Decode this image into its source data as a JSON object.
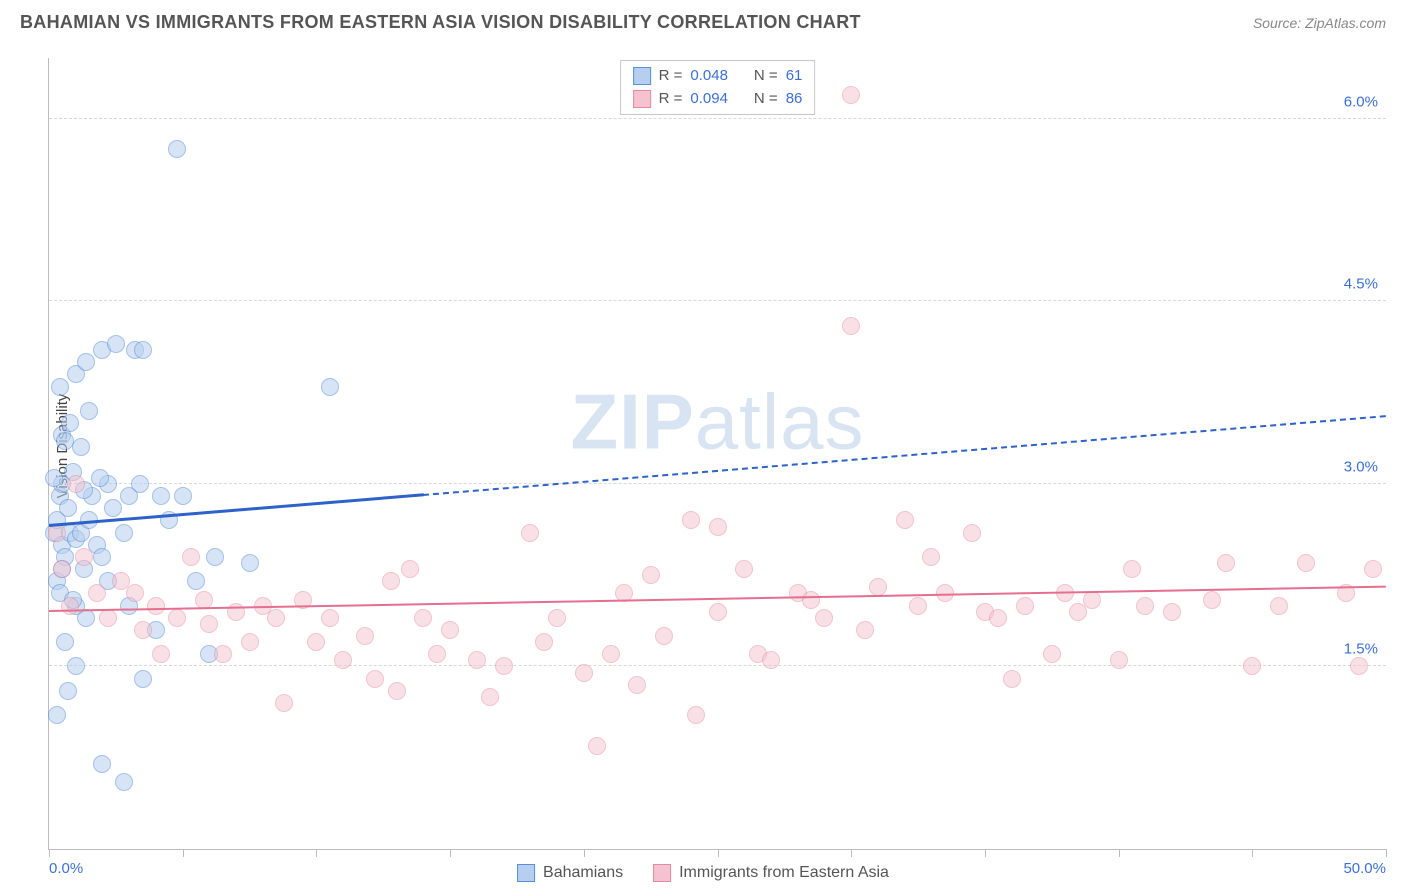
{
  "header": {
    "title": "BAHAMIAN VS IMMIGRANTS FROM EASTERN ASIA VISION DISABILITY CORRELATION CHART",
    "source_prefix": "Source: ",
    "source_name": "ZipAtlas.com"
  },
  "ylabel": "Vision Disability",
  "watermark": {
    "bold": "ZIP",
    "rest": "atlas"
  },
  "chart": {
    "type": "scatter",
    "xlim": [
      0,
      50
    ],
    "ylim": [
      0,
      6.5
    ],
    "x_axis_labels": {
      "left": "0.0%",
      "right": "50.0%"
    },
    "y_ticks": [
      {
        "v": 1.5,
        "label": "1.5%"
      },
      {
        "v": 3.0,
        "label": "3.0%"
      },
      {
        "v": 4.5,
        "label": "4.5%"
      },
      {
        "v": 6.0,
        "label": "6.0%"
      }
    ],
    "x_tick_positions": [
      0,
      5,
      10,
      15,
      20,
      25,
      30,
      35,
      40,
      45,
      50
    ],
    "grid_color": "#d8d8d8",
    "axis_color": "#bdbdbd",
    "background_color": "#ffffff",
    "tick_label_color": "#3b6fd6",
    "marker_radius": 9,
    "marker_border_width": 1.2,
    "series": [
      {
        "name": "Bahamians",
        "fill": "#b6cff0",
        "fill_opacity": 0.55,
        "stroke": "#5a8fd6",
        "trend": {
          "color": "#2c62c9",
          "width": 3,
          "solid_end_x": 14,
          "y_start": 2.65,
          "y_end": 3.55
        },
        "stats": {
          "R": "0.048",
          "N": "61"
        },
        "points": [
          [
            0.2,
            2.6
          ],
          [
            0.3,
            2.7
          ],
          [
            0.5,
            2.5
          ],
          [
            0.4,
            2.9
          ],
          [
            0.6,
            2.4
          ],
          [
            0.8,
            2.6
          ],
          [
            0.3,
            2.2
          ],
          [
            0.7,
            2.8
          ],
          [
            1.0,
            2.55
          ],
          [
            1.2,
            2.6
          ],
          [
            0.5,
            3.0
          ],
          [
            0.9,
            3.1
          ],
          [
            0.4,
            2.1
          ],
          [
            1.3,
            2.3
          ],
          [
            1.5,
            2.7
          ],
          [
            1.8,
            2.5
          ],
          [
            0.6,
            1.7
          ],
          [
            1.0,
            1.5
          ],
          [
            1.4,
            1.9
          ],
          [
            1.6,
            2.9
          ],
          [
            2.0,
            2.4
          ],
          [
            2.4,
            2.8
          ],
          [
            2.2,
            3.0
          ],
          [
            2.8,
            2.6
          ],
          [
            3.0,
            2.9
          ],
          [
            3.4,
            3.0
          ],
          [
            4.2,
            2.9
          ],
          [
            4.5,
            2.7
          ],
          [
            5.0,
            2.9
          ],
          [
            5.5,
            2.2
          ],
          [
            6.0,
            1.6
          ],
          [
            6.2,
            2.4
          ],
          [
            0.5,
            3.4
          ],
          [
            0.8,
            3.5
          ],
          [
            1.2,
            3.3
          ],
          [
            2.0,
            4.1
          ],
          [
            2.5,
            4.15
          ],
          [
            3.2,
            4.1
          ],
          [
            3.5,
            4.1
          ],
          [
            0.4,
            3.8
          ],
          [
            1.0,
            3.9
          ],
          [
            1.5,
            3.6
          ],
          [
            1.3,
            2.95
          ],
          [
            2.2,
            2.2
          ],
          [
            4.0,
            1.8
          ],
          [
            3.5,
            1.4
          ],
          [
            2.8,
            0.55
          ],
          [
            2.0,
            0.7
          ],
          [
            10.5,
            3.8
          ],
          [
            4.8,
            5.75
          ],
          [
            0.3,
            1.1
          ],
          [
            0.7,
            1.3
          ],
          [
            1.0,
            2.0
          ],
          [
            0.5,
            2.3
          ],
          [
            1.9,
            3.05
          ],
          [
            0.2,
            3.05
          ],
          [
            0.6,
            3.35
          ],
          [
            1.4,
            4.0
          ],
          [
            0.9,
            2.05
          ],
          [
            3.0,
            2.0
          ],
          [
            7.5,
            2.35
          ]
        ]
      },
      {
        "name": "Immigrants from Eastern Asia",
        "fill": "#f4c3cf",
        "fill_opacity": 0.5,
        "stroke": "#e58aa0",
        "trend": {
          "color": "#e56f8e",
          "width": 2.5,
          "solid_end_x": 50,
          "y_start": 1.95,
          "y_end": 2.15
        },
        "stats": {
          "R": "0.094",
          "N": "86"
        },
        "points": [
          [
            0.3,
            2.6
          ],
          [
            0.5,
            2.3
          ],
          [
            0.8,
            2.0
          ],
          [
            1.0,
            3.0
          ],
          [
            1.3,
            2.4
          ],
          [
            1.8,
            2.1
          ],
          [
            2.2,
            1.9
          ],
          [
            2.7,
            2.2
          ],
          [
            3.2,
            2.1
          ],
          [
            3.5,
            1.8
          ],
          [
            4.0,
            2.0
          ],
          [
            4.2,
            1.6
          ],
          [
            4.8,
            1.9
          ],
          [
            5.3,
            2.4
          ],
          [
            5.8,
            2.05
          ],
          [
            6.0,
            1.85
          ],
          [
            6.5,
            1.6
          ],
          [
            7.0,
            1.95
          ],
          [
            7.5,
            1.7
          ],
          [
            8.0,
            2.0
          ],
          [
            8.5,
            1.9
          ],
          [
            8.8,
            1.2
          ],
          [
            9.5,
            2.05
          ],
          [
            10.0,
            1.7
          ],
          [
            10.5,
            1.9
          ],
          [
            11.0,
            1.55
          ],
          [
            11.8,
            1.75
          ],
          [
            12.2,
            1.4
          ],
          [
            12.8,
            2.2
          ],
          [
            13.0,
            1.3
          ],
          [
            13.5,
            2.3
          ],
          [
            14.0,
            1.9
          ],
          [
            14.5,
            1.6
          ],
          [
            15.0,
            1.8
          ],
          [
            16.0,
            1.55
          ],
          [
            16.5,
            1.25
          ],
          [
            17.0,
            1.5
          ],
          [
            18.0,
            2.6
          ],
          [
            18.5,
            1.7
          ],
          [
            19.0,
            1.9
          ],
          [
            20.0,
            1.45
          ],
          [
            20.5,
            0.85
          ],
          [
            21.0,
            1.6
          ],
          [
            21.5,
            2.1
          ],
          [
            22.0,
            1.35
          ],
          [
            22.5,
            2.25
          ],
          [
            23.0,
            1.75
          ],
          [
            24.0,
            2.7
          ],
          [
            24.2,
            1.1
          ],
          [
            25.0,
            1.95
          ],
          [
            25.0,
            2.65
          ],
          [
            26.0,
            2.3
          ],
          [
            26.5,
            1.6
          ],
          [
            27.0,
            1.55
          ],
          [
            28.0,
            2.1
          ],
          [
            28.5,
            2.05
          ],
          [
            29.0,
            1.9
          ],
          [
            30.0,
            6.2
          ],
          [
            30.0,
            4.3
          ],
          [
            30.5,
            1.8
          ],
          [
            31.0,
            2.15
          ],
          [
            32.0,
            2.7
          ],
          [
            32.5,
            2.0
          ],
          [
            33.0,
            2.4
          ],
          [
            33.5,
            2.1
          ],
          [
            34.5,
            2.6
          ],
          [
            35.0,
            1.95
          ],
          [
            35.5,
            1.9
          ],
          [
            36.0,
            1.4
          ],
          [
            36.5,
            2.0
          ],
          [
            37.5,
            1.6
          ],
          [
            38.0,
            2.1
          ],
          [
            38.5,
            1.95
          ],
          [
            39.0,
            2.05
          ],
          [
            40.0,
            1.55
          ],
          [
            40.5,
            2.3
          ],
          [
            41.0,
            2.0
          ],
          [
            42.0,
            1.95
          ],
          [
            43.5,
            2.05
          ],
          [
            44.0,
            2.35
          ],
          [
            45.0,
            1.5
          ],
          [
            46.0,
            2.0
          ],
          [
            47.0,
            2.35
          ],
          [
            48.5,
            2.1
          ],
          [
            49.0,
            1.5
          ],
          [
            49.5,
            2.3
          ]
        ]
      }
    ]
  },
  "legend_top": {
    "r_label": "R =",
    "n_label": "N ="
  },
  "legend_bottom": {
    "items": [
      "Bahamians",
      "Immigrants from Eastern Asia"
    ]
  }
}
